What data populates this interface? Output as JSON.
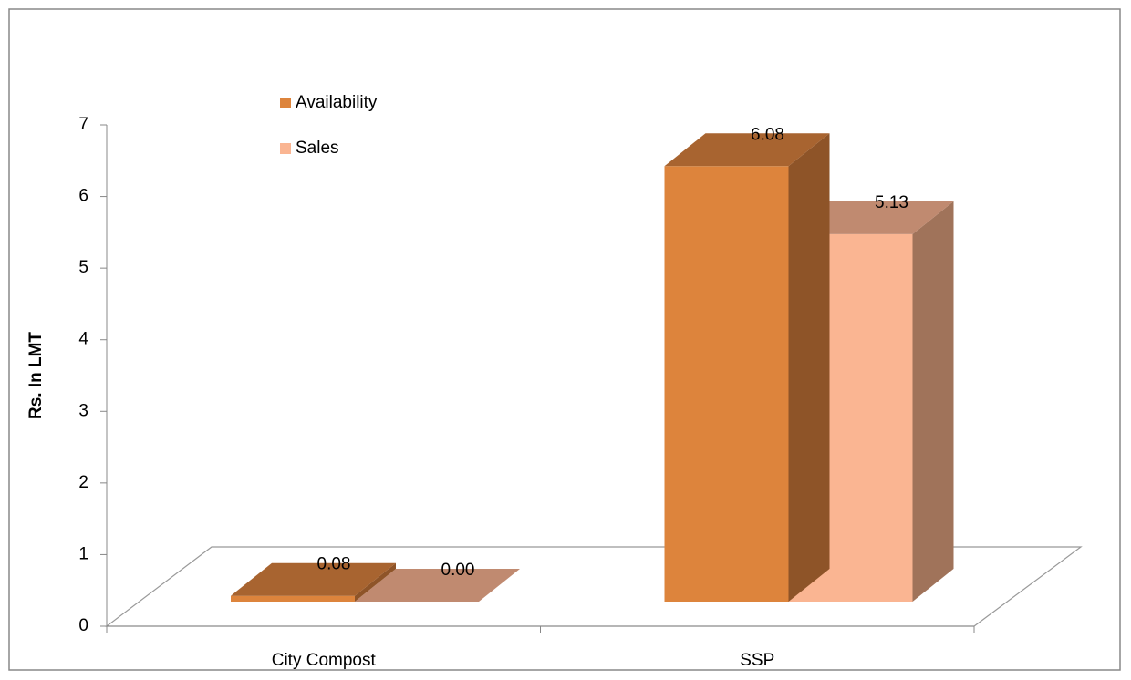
{
  "chart_data": {
    "type": "bar3d",
    "y_label": "Rs. In LMT",
    "categories": [
      "City Compost",
      "SSP"
    ],
    "series": [
      {
        "name": "Availability",
        "color": "#DD843C",
        "top_color": "#A86430",
        "side_color": "#8E5428",
        "values": [
          0.08,
          6.08
        ],
        "value_labels": [
          "0.08",
          "6.08"
        ]
      },
      {
        "name": "Sales",
        "color": "#FAB592",
        "top_color": "#C08A70",
        "side_color": "#A0735A",
        "values": [
          0,
          5.13
        ],
        "value_labels": [
          "0.00",
          "5.13"
        ]
      }
    ],
    "ylim": [
      0,
      7
    ],
    "yticks": [
      0,
      1,
      2,
      3,
      4,
      5,
      6,
      7
    ]
  }
}
